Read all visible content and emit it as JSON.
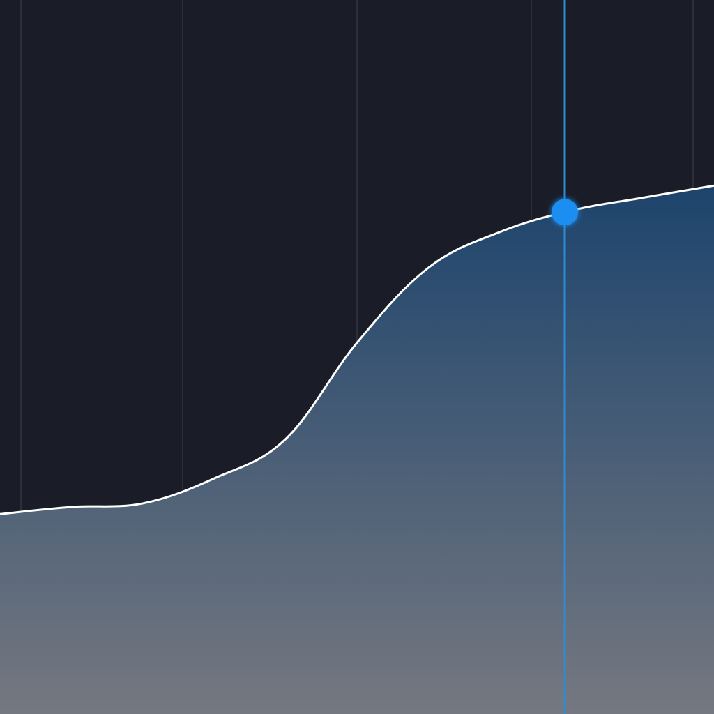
{
  "chart_data": {
    "type": "area",
    "x": [
      0,
      1,
      2,
      3,
      4,
      5,
      6,
      7,
      8,
      9,
      10
    ],
    "y": [
      28,
      29,
      29.5,
      33,
      38.5,
      52,
      62.5,
      67.5,
      70.5,
      72.3,
      74
    ],
    "xlim": [
      0,
      10
    ],
    "ylim": [
      0,
      100
    ],
    "grid": "vertical",
    "highlight": {
      "x": 7.91
    },
    "title": "",
    "xlabel": "",
    "ylabel": ""
  },
  "colors": {
    "background": "#1a1d27",
    "gridline": "#2b2f3a",
    "line": "#ffffff",
    "fill_top": "#1d446d",
    "fill_bottom": "#757880",
    "cursor": "#2e8bd6",
    "marker": "#1f8ef1"
  }
}
